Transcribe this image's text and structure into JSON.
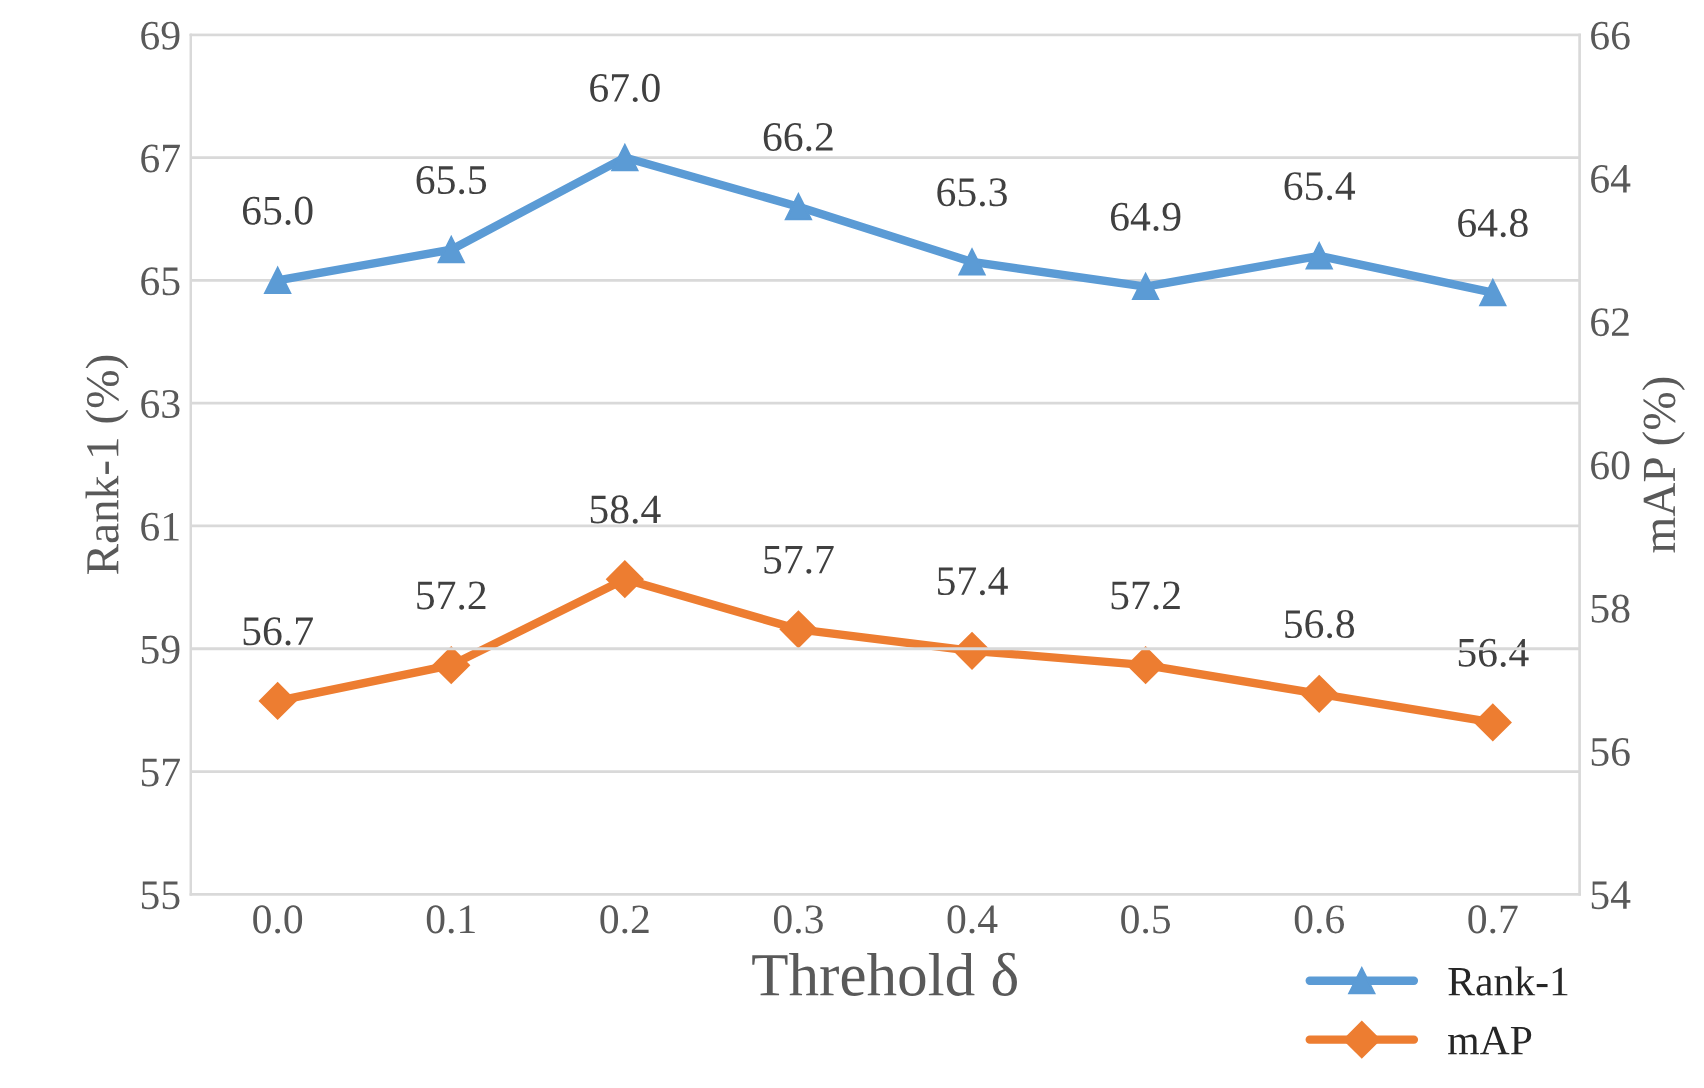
{
  "chart_data": {
    "type": "line",
    "xlabel": "Threhold δ",
    "ylabel": "Rank-1 (%)",
    "y2label": "mAP (%)",
    "categories": [
      "0.0",
      "0.1",
      "0.2",
      "0.3",
      "0.4",
      "0.5",
      "0.6",
      "0.7"
    ],
    "series": [
      {
        "name": "Rank-1",
        "color": "#5b9bd5",
        "marker": "triangle",
        "values": [
          65.0,
          65.5,
          67.0,
          66.2,
          65.3,
          64.9,
          65.4,
          64.8
        ],
        "value_labels": [
          "65.0",
          "65.5",
          "67.0",
          "66.2",
          "65.3",
          "64.9",
          "65.4",
          "64.8"
        ]
      },
      {
        "name": "mAP",
        "color": "#ed7d31",
        "marker": "diamond",
        "axis": "y2",
        "values": [
          56.7,
          57.2,
          58.4,
          57.7,
          57.4,
          57.2,
          56.8,
          56.4
        ],
        "value_labels": [
          "56.7",
          "57.2",
          "58.4",
          "57.7",
          "57.4",
          "57.2",
          "56.8",
          "56.4"
        ]
      }
    ],
    "ylim": [
      55,
      69
    ],
    "yticks": [
      55,
      57,
      59,
      61,
      63,
      65,
      67,
      69
    ],
    "y2lim": [
      54,
      66
    ],
    "y2ticks": [
      54,
      56,
      58,
      60,
      62,
      64,
      66
    ],
    "grid": "y",
    "legend": "bottom right",
    "line_style": "solid"
  }
}
